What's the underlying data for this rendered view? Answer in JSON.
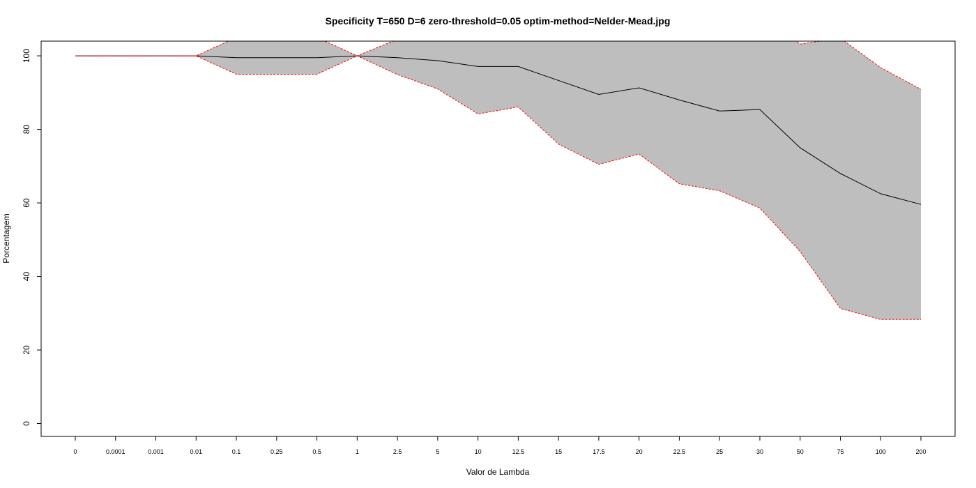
{
  "chart_data": {
    "type": "line",
    "title": "Specificity T=650 D=6 zero-threshold=0.05 optim-method=Nelder-Mead.jpg",
    "xlabel": "Valor de Lambda",
    "ylabel": "Porcentagem",
    "categories": [
      "0",
      "0.0001",
      "0.001",
      "0.01",
      "0.1",
      "0.25",
      "0.5",
      "1",
      "2.5",
      "5",
      "10",
      "12.5",
      "15",
      "17.5",
      "20",
      "22.5",
      "25",
      "30",
      "50",
      "75",
      "100",
      "200"
    ],
    "yticks": [
      0,
      20,
      40,
      60,
      80,
      100
    ],
    "ylim": [
      -3.5,
      104
    ],
    "grid": false,
    "series": [
      {
        "role": "mean",
        "values": [
          100,
          100,
          100,
          100,
          99.5,
          99.5,
          99.5,
          100,
          99.5,
          98.7,
          97.1,
          97.1,
          93.3,
          89.5,
          91.3,
          88.0,
          85.0,
          85.4,
          75.0,
          68.0,
          62.5,
          59.6
        ]
      },
      {
        "role": "upper",
        "values": [
          100,
          100,
          100,
          100,
          105,
          105,
          105,
          100,
          104.5,
          106.5,
          110,
          108.5,
          110.5,
          108.5,
          109.3,
          110.8,
          106.8,
          112.2,
          103.2,
          104.8,
          96.8,
          90.9
        ]
      },
      {
        "role": "lower",
        "values": [
          100,
          100,
          100,
          100,
          95,
          95,
          95,
          100,
          94.9,
          91.0,
          84.2,
          86.1,
          76.0,
          70.5,
          73.3,
          65.2,
          63.3,
          58.6,
          46.8,
          31.3,
          28.3,
          28.3
        ]
      }
    ],
    "colors": {
      "band": "#bebebe",
      "mean": "#000000",
      "bounds": "#ff0000",
      "axis": "#000000"
    }
  }
}
